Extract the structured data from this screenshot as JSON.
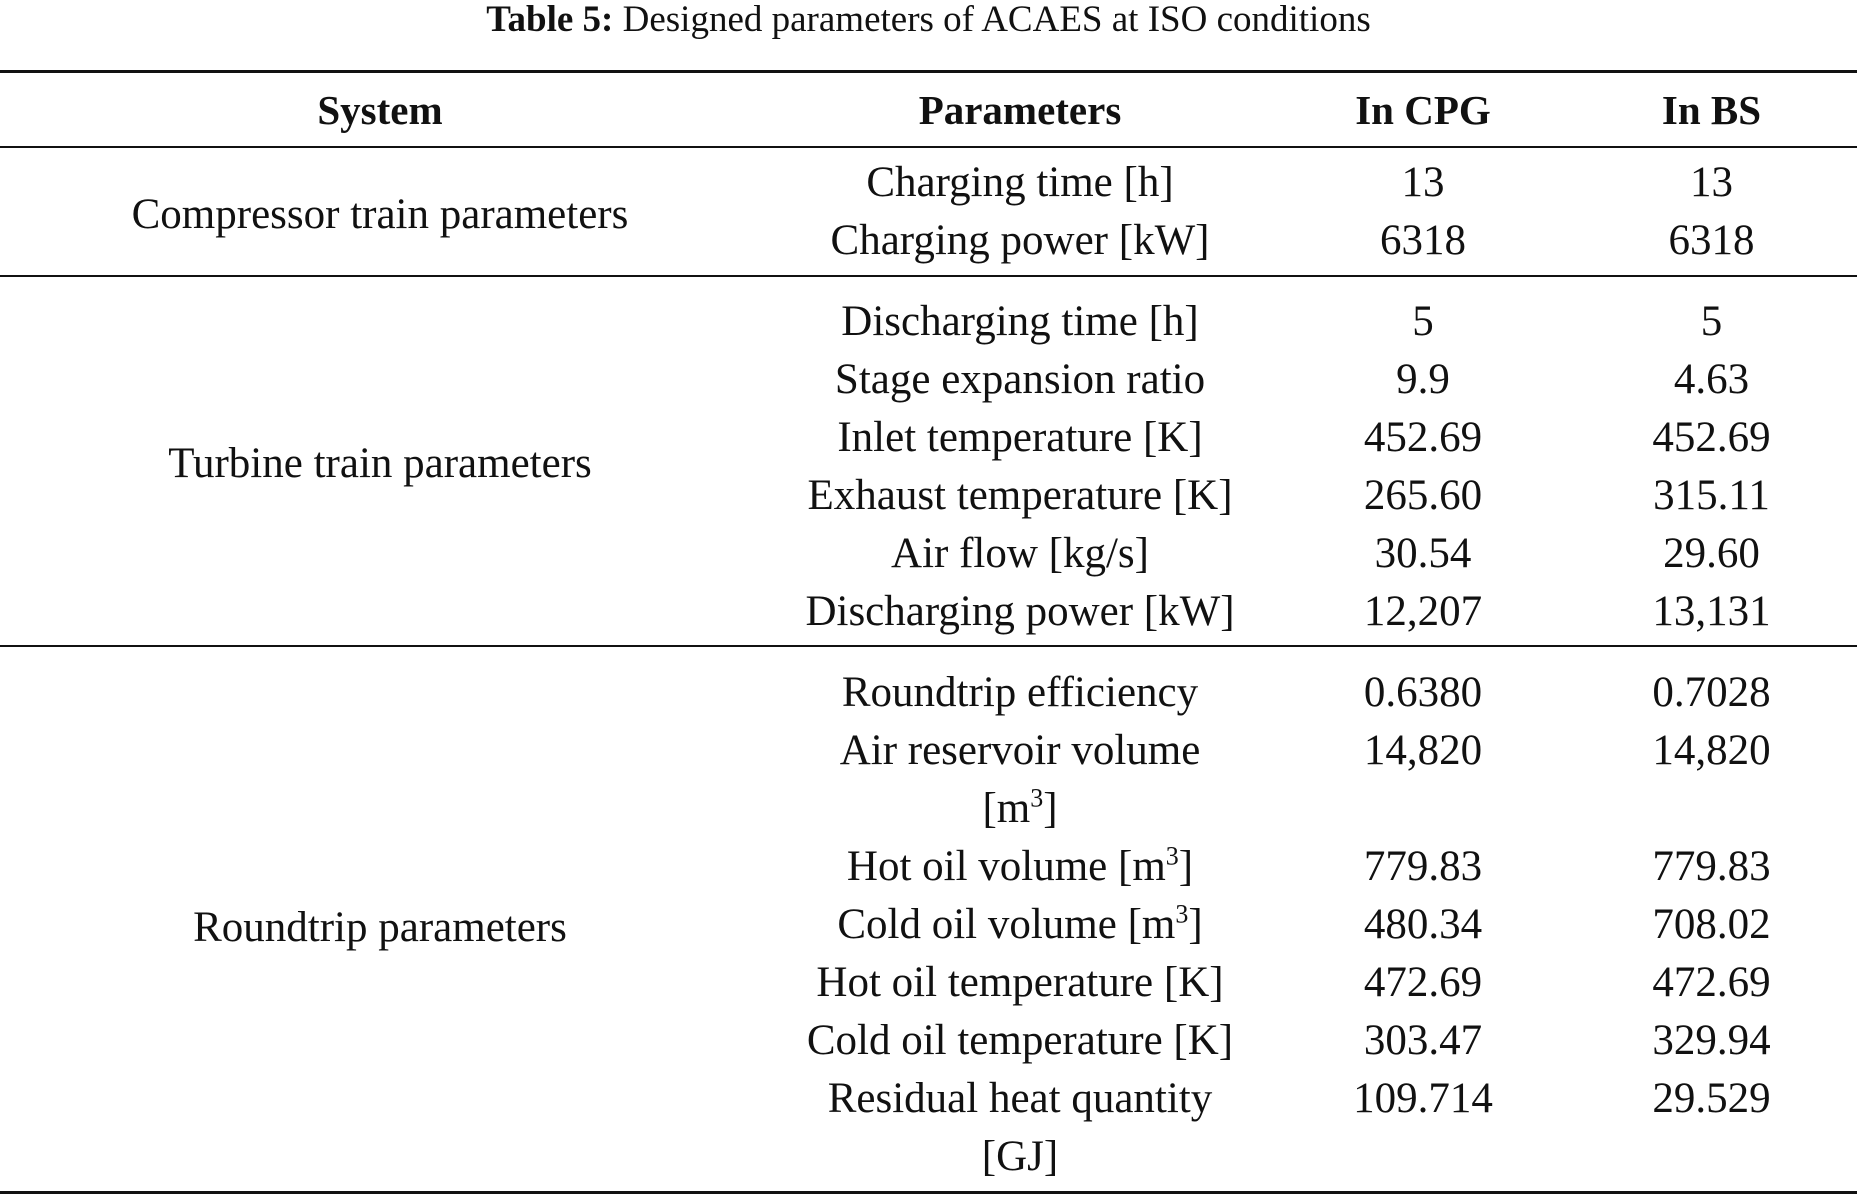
{
  "caption": {
    "label": "Table 5:",
    "text": "Designed parameters of ACAES at ISO conditions"
  },
  "headers": {
    "system": "System",
    "parameters": "Parameters",
    "in_cpg": "In CPG",
    "in_bs": "In BS"
  },
  "groups": [
    {
      "system": "Compressor train parameters",
      "rows": [
        {
          "parameter": "Charging time [h]",
          "cpg": "13",
          "bs": "13"
        },
        {
          "parameter": "Charging power [kW]",
          "cpg": "6318",
          "bs": "6318"
        }
      ]
    },
    {
      "system": "Turbine train parameters",
      "rows": [
        {
          "parameter": "Discharging time [h]",
          "cpg": "5",
          "bs": "5"
        },
        {
          "parameter": "Stage expansion ratio",
          "cpg": "9.9",
          "bs": "4.63"
        },
        {
          "parameter": "Inlet temperature [K]",
          "cpg": "452.69",
          "bs": "452.69"
        },
        {
          "parameter": "Exhaust temperature [K]",
          "cpg": "265.60",
          "bs": "315.11"
        },
        {
          "parameter": "Air flow [kg/s]",
          "cpg": "30.54",
          "bs": "29.60"
        },
        {
          "parameter": "Discharging power [kW]",
          "cpg": "12,207",
          "bs": "13,131"
        }
      ]
    },
    {
      "system": "Roundtrip parameters",
      "rows": [
        {
          "parameter": "Roundtrip efficiency",
          "cpg": "0.6380",
          "bs": "0.7028"
        },
        {
          "parameter_line1": "Air reservoir volume",
          "parameter_line2_unit": "[m",
          "parameter_line2_sup": "3",
          "parameter_line2_close": "]",
          "cpg": "14,820",
          "bs": "14,820"
        },
        {
          "parameter_text": "Hot oil volume [m",
          "parameter_sup": "3",
          "parameter_close": "]",
          "cpg": "779.83",
          "bs": "779.83"
        },
        {
          "parameter_text": "Cold oil volume [m",
          "parameter_sup": "3",
          "parameter_close": "]",
          "cpg": "480.34",
          "bs": "708.02"
        },
        {
          "parameter": "Hot oil temperature [K]",
          "cpg": "472.69",
          "bs": "472.69"
        },
        {
          "parameter": "Cold oil temperature [K]",
          "cpg": "303.47",
          "bs": "329.94"
        },
        {
          "parameter_line1": "Residual heat quantity",
          "parameter_line2": "[GJ]",
          "cpg": "109.714",
          "bs": "29.529"
        }
      ]
    }
  ]
}
